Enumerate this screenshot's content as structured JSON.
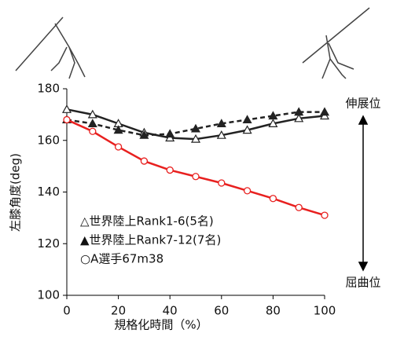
{
  "chart_data": {
    "type": "line",
    "x": [
      0,
      10,
      20,
      30,
      40,
      50,
      60,
      70,
      80,
      90,
      100
    ],
    "series": [
      {
        "name": "△世界陸上Rank1-6(5名)",
        "color": "#222222",
        "marker": "triangle-open",
        "dash": false,
        "values": [
          172,
          170,
          166.5,
          163,
          161,
          160.5,
          162,
          164,
          166.5,
          168.5,
          169.5
        ]
      },
      {
        "name": "▲世界陸上Rank7-12(7名)",
        "color": "#222222",
        "marker": "triangle-filled",
        "dash": true,
        "values": [
          168,
          166.5,
          164,
          162,
          162.5,
          164.5,
          166.5,
          168,
          169.5,
          171,
          171
        ]
      },
      {
        "name": "○A選手67m38",
        "color": "#e8201f",
        "marker": "circle-open",
        "dash": false,
        "values": [
          168,
          163.5,
          157.5,
          152,
          148.5,
          146,
          143.5,
          140.5,
          137.5,
          134,
          131
        ]
      }
    ],
    "xlim": [
      0,
      100
    ],
    "xticks": [
      0,
      20,
      40,
      60,
      80,
      100
    ],
    "ylim": [
      100,
      180
    ],
    "yticks": [
      100,
      120,
      140,
      160,
      180
    ],
    "xlabel": "規格化時間（%）",
    "ylabel": "左膝角度(deg)",
    "annotations": [
      "伸展位",
      "屈曲位"
    ]
  }
}
